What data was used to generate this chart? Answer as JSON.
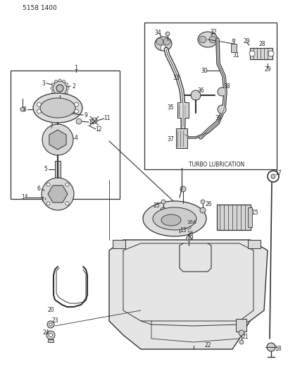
{
  "title_code": "5158 1400",
  "bg_color": "#ffffff",
  "line_color": "#333333",
  "text_color": "#222222",
  "turbo_label": "TURBO LUBRICATION",
  "fig_width": 4.1,
  "fig_height": 5.33,
  "dpi": 100
}
